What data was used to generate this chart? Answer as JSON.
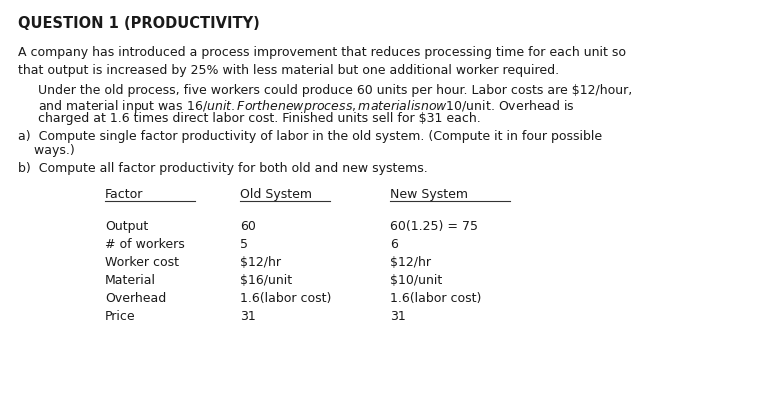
{
  "title": "QUESTION 1 (PRODUCTIVITY)",
  "background_color": "#ffffff",
  "text_color": "#1a1a1a",
  "para1": "A company has introduced a process improvement that reduces processing time for each unit so\nthat output is increased by 25% with less material but one additional worker required.",
  "para2a": "Under the old process, five workers could produce 60 units per hour. Labor costs are $12/hour,",
  "para2b": "and material input was $16/unit. For the new process, material is now $10/unit. Overhead is",
  "para2c": "charged at 1.6 times direct labor cost. Finished units sell for $31 each.",
  "para3a": "a)  Compute single factor productivity of labor in the old system. (Compute it in four possible",
  "para3b": "    ways.)",
  "para4": "b)  Compute all factor productivity for both old and new systems.",
  "table_headers": [
    "Factor",
    "Old System",
    "New System"
  ],
  "table_rows": [
    [
      "Output",
      "60",
      "60(1.25) = 75"
    ],
    [
      "# of workers",
      "5",
      "6"
    ],
    [
      "Worker cost",
      "$12/hr",
      "$12/hr"
    ],
    [
      "Material",
      "$16/unit",
      "$10/unit"
    ],
    [
      "Overhead",
      "1.6(labor cost)",
      "1.6(labor cost)"
    ],
    [
      "Price",
      "31",
      "31"
    ]
  ],
  "font_size_title": 10.5,
  "font_size_body": 9.0,
  "font_size_table": 9.0
}
